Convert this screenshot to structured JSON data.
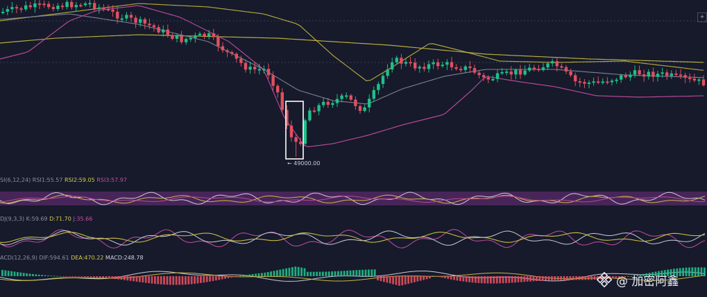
{
  "chart_data": {
    "type": "candlestick",
    "price_marker": "← 49000.00",
    "rsi_legend": {
      "label": "SI(6,12,24)",
      "rsi1": "RSI1:55.57",
      "rsi2": "RSI2:59.05",
      "rsi3": "RSI3:57.97"
    },
    "kdj_legend": {
      "label": "DJ(9,3,3)",
      "k": "K:59.69",
      "d": "D:71.70",
      "j": "J:35.66"
    },
    "macd_legend": {
      "label": "ACD(12,26,9)",
      "dif": "DIF:594.61",
      "dea": "DEA:470.22",
      "macd": "MACD:248.78"
    },
    "colors": {
      "up": "#1fbf8a",
      "down": "#e0505f",
      "ma_yellow": "#c9bb3e",
      "ma_magenta": "#b6489a",
      "ma_gray": "#7b8196",
      "rsi_band": "#5a2a6a",
      "background": "#161a2b"
    }
  },
  "watermark": {
    "logo_icon": "binance-logo-icon",
    "text": "@ 加密阿鑫"
  },
  "toolbar": {
    "zoom_plus": "+"
  }
}
